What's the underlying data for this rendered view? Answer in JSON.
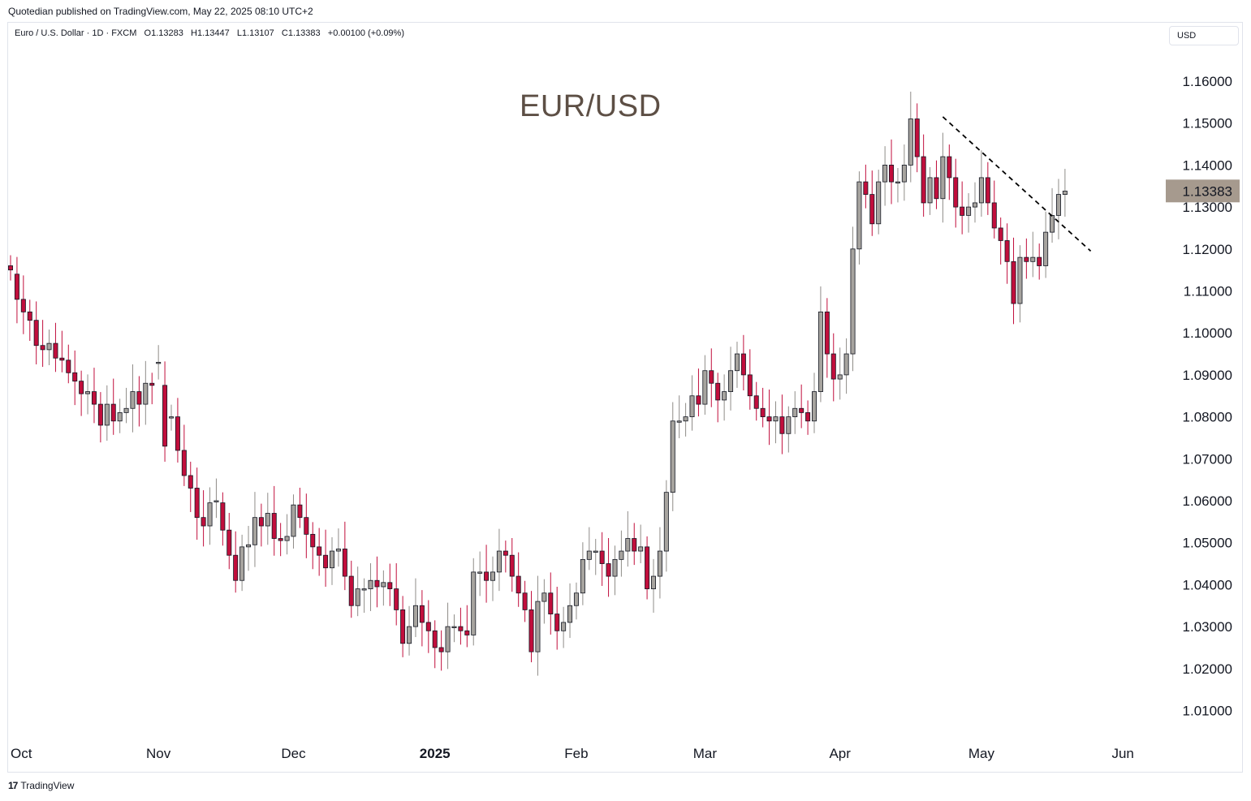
{
  "header": {
    "published": "Quotedian published on TradingView.com, May 22, 2025 08:10 UTC+2"
  },
  "legend": {
    "text": "Euro / U.S. Dollar · 1D · FXCM   O1.13283   H1.13447   L1.13107   C1.13383   +0.00100 (+0.09%)"
  },
  "currency_selector": {
    "label": "USD"
  },
  "footer": {
    "logo_mark": "17",
    "brand": "TradingView"
  },
  "colors": {
    "up": "#a7a49f",
    "down": "#c10e3c",
    "price_tag": "#a69a8e",
    "title": "#5d4f45"
  },
  "chart_data": {
    "type": "candlestick",
    "title": "EUR/USD",
    "xlabel": "",
    "ylabel": "",
    "ylim": [
      1.0,
      1.165
    ],
    "y_ticks": [
      "1.16000",
      "1.15000",
      "1.14000",
      "1.13000",
      "1.12000",
      "1.11000",
      "1.10000",
      "1.09000",
      "1.08000",
      "1.07000",
      "1.06000",
      "1.05000",
      "1.04000",
      "1.03000",
      "1.02000",
      "1.01000"
    ],
    "x_ticks": [
      {
        "label": "Oct",
        "index": 0,
        "bold": false
      },
      {
        "label": "Nov",
        "index": 23,
        "bold": false
      },
      {
        "label": "Dec",
        "index": 44,
        "bold": false
      },
      {
        "label": "2025",
        "index": 66,
        "bold": true
      },
      {
        "label": "Feb",
        "index": 88,
        "bold": false
      },
      {
        "label": "Mar",
        "index": 108,
        "bold": false
      },
      {
        "label": "Apr",
        "index": 129,
        "bold": false
      },
      {
        "label": "May",
        "index": 151,
        "bold": false
      },
      {
        "label": "Jun",
        "index": 173,
        "bold": false
      }
    ],
    "last_price": {
      "value": 1.13383,
      "label": "1.13383"
    },
    "trendline": {
      "start_index": 145,
      "start_value": 1.1515,
      "end_index": 168,
      "end_value": 1.1195,
      "style": "dashed"
    },
    "closes": [
      1.115,
      1.108,
      1.105,
      1.103,
      1.097,
      1.096,
      1.0975,
      1.094,
      1.0935,
      1.0905,
      1.0885,
      1.0855,
      1.086,
      1.083,
      1.078,
      1.083,
      1.079,
      1.081,
      1.082,
      1.086,
      1.083,
      1.088,
      1.0875,
      1.093,
      1.073,
      1.08,
      1.072,
      1.066,
      1.063,
      1.056,
      1.054,
      1.0595,
      1.06,
      1.053,
      1.047,
      1.041,
      1.049,
      1.0495,
      1.056,
      1.054,
      1.057,
      1.051,
      1.0505,
      1.0515,
      1.059,
      1.056,
      1.052,
      1.049,
      1.047,
      1.044,
      1.048,
      1.0485,
      1.042,
      1.035,
      1.039,
      1.039,
      1.041,
      1.0395,
      1.0405,
      1.039,
      1.034,
      1.026,
      1.03,
      1.035,
      1.031,
      1.029,
      1.025,
      1.024,
      1.03,
      1.03,
      1.029,
      1.028,
      1.043,
      1.043,
      1.041,
      1.043,
      1.048,
      1.047,
      1.042,
      1.038,
      1.034,
      1.024,
      1.036,
      1.038,
      1.033,
      1.029,
      1.031,
      1.035,
      1.038,
      1.046,
      1.048,
      1.048,
      1.045,
      1.042,
      1.046,
      1.048,
      1.051,
      1.048,
      1.049,
      1.039,
      1.042,
      1.048,
      1.062,
      1.079,
      1.079,
      1.08,
      1.085,
      1.083,
      1.091,
      1.088,
      1.084,
      1.086,
      1.091,
      1.095,
      1.09,
      1.085,
      1.082,
      1.08,
      1.079,
      1.08,
      1.076,
      1.08,
      1.082,
      1.081,
      1.079,
      1.086,
      1.105,
      1.095,
      1.089,
      1.09,
      1.095,
      1.12,
      1.136,
      1.133,
      1.126,
      1.136,
      1.14,
      1.136,
      1.136,
      1.14,
      1.151,
      1.142,
      1.131,
      1.137,
      1.132,
      1.142,
      1.137,
      1.13,
      1.128,
      1.13,
      1.131,
      1.137,
      1.131,
      1.125,
      1.122,
      1.117,
      1.107,
      1.118,
      1.117,
      1.118,
      1.116,
      1.124,
      1.128,
      1.133,
      1.1338
    ],
    "opens": [
      1.116,
      1.114,
      1.108,
      1.105,
      1.103,
      1.097,
      1.096,
      1.0975,
      1.094,
      1.0935,
      1.0905,
      1.0885,
      1.0855,
      1.086,
      1.083,
      1.078,
      1.083,
      1.079,
      1.081,
      1.082,
      1.086,
      1.083,
      1.088,
      1.093,
      1.0875,
      1.08,
      1.08,
      1.072,
      1.066,
      1.063,
      1.056,
      1.054,
      1.06,
      1.0595,
      1.053,
      1.047,
      1.041,
      1.049,
      1.0495,
      1.056,
      1.054,
      1.057,
      1.051,
      1.0505,
      1.0515,
      1.059,
      1.056,
      1.052,
      1.049,
      1.047,
      1.044,
      1.048,
      1.0485,
      1.042,
      1.035,
      1.039,
      1.039,
      1.041,
      1.0395,
      1.0405,
      1.039,
      1.034,
      1.026,
      1.03,
      1.035,
      1.031,
      1.029,
      1.025,
      1.024,
      1.03,
      1.03,
      1.029,
      1.028,
      1.043,
      1.043,
      1.041,
      1.043,
      1.048,
      1.047,
      1.042,
      1.038,
      1.034,
      1.024,
      1.036,
      1.038,
      1.033,
      1.029,
      1.031,
      1.035,
      1.038,
      1.046,
      1.048,
      1.048,
      1.045,
      1.042,
      1.046,
      1.048,
      1.051,
      1.048,
      1.049,
      1.039,
      1.042,
      1.048,
      1.062,
      1.079,
      1.079,
      1.08,
      1.085,
      1.083,
      1.091,
      1.088,
      1.084,
      1.086,
      1.091,
      1.095,
      1.09,
      1.085,
      1.082,
      1.08,
      1.079,
      1.08,
      1.076,
      1.08,
      1.082,
      1.081,
      1.079,
      1.086,
      1.105,
      1.095,
      1.089,
      1.09,
      1.095,
      1.12,
      1.136,
      1.133,
      1.126,
      1.136,
      1.14,
      1.136,
      1.136,
      1.14,
      1.151,
      1.142,
      1.131,
      1.137,
      1.132,
      1.142,
      1.137,
      1.13,
      1.128,
      1.13,
      1.131,
      1.137,
      1.131,
      1.125,
      1.122,
      1.117,
      1.107,
      1.118,
      1.117,
      1.118,
      1.116,
      1.124,
      1.128,
      1.133
    ]
  }
}
